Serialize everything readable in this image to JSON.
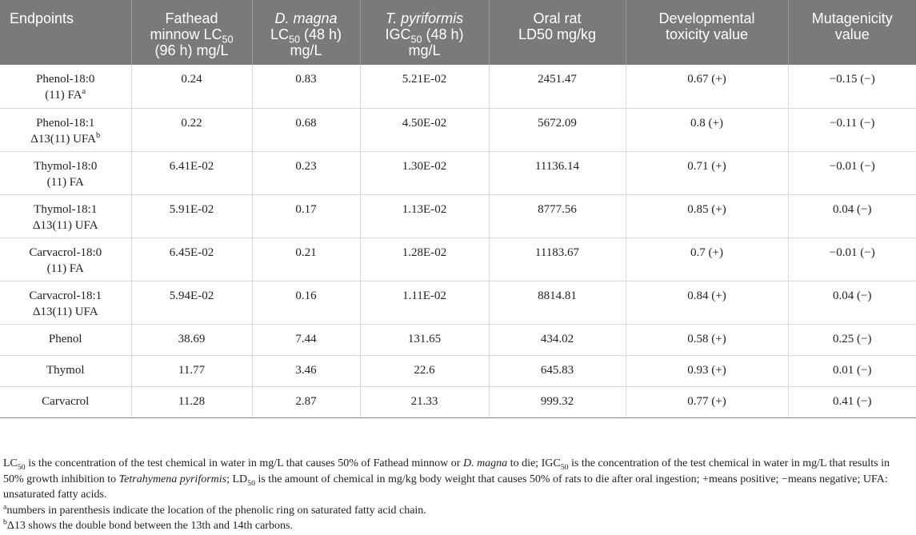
{
  "headers": [
    {
      "id": "endpoints",
      "line1": "Endpoints"
    },
    {
      "id": "fathead",
      "line1": "Fathead",
      "line2a": "minnow LC",
      "line2sub": "50",
      "line3": "(96 h) mg/L"
    },
    {
      "id": "dmagna",
      "line1_it": "D. magna",
      "line2a": "LC",
      "line2sub": "50",
      "line2b": " (48 h)",
      "line3": "mg/L"
    },
    {
      "id": "tpyri",
      "line1_it": "T. pyriformis",
      "line2a": "IGC",
      "line2sub": "50",
      "line2b": " (48 h)",
      "line3": "mg/L"
    },
    {
      "id": "oralrat",
      "line1": "Oral rat",
      "line2": "LD50 mg/kg"
    },
    {
      "id": "devtox",
      "line1": "Developmental",
      "line2": "toxicity value"
    },
    {
      "id": "mutagen",
      "line1": "Mutagenicity",
      "line2": "value"
    }
  ],
  "rows": [
    {
      "name1": "Phenol-18:0",
      "name2": "(11) FA",
      "sup": "a",
      "fathead": "0.24",
      "dmagna": "0.83",
      "tpyri": "5.21E-02",
      "oralrat": "2451.47",
      "devtox": "0.67 (+)",
      "mutagen": "−0.15 (−)"
    },
    {
      "name1": "Phenol-18:1",
      "name2": "Δ13(11) UFA",
      "sup": "b",
      "fathead": "0.22",
      "dmagna": "0.68",
      "tpyri": "4.50E-02",
      "oralrat": "5672.09",
      "devtox": "0.8 (+)",
      "mutagen": "−0.11 (−)"
    },
    {
      "name1": "Thymol-18:0",
      "name2": "(11) FA",
      "sup": "",
      "fathead": "6.41E-02",
      "dmagna": "0.23",
      "tpyri": "1.30E-02",
      "oralrat": "11136.14",
      "devtox": "0.71 (+)",
      "mutagen": "−0.01 (−)"
    },
    {
      "name1": "Thymol-18:1",
      "name2": "Δ13(11) UFA",
      "sup": "",
      "fathead": "5.91E-02",
      "dmagna": "0.17",
      "tpyri": "1.13E-02",
      "oralrat": "8777.56",
      "devtox": "0.85 (+)",
      "mutagen": "0.04 (−)"
    },
    {
      "name1": "Carvacrol-18:0",
      "name2": "(11) FA",
      "sup": "",
      "fathead": "6.45E-02",
      "dmagna": "0.21",
      "tpyri": "1.28E-02",
      "oralrat": "11183.67",
      "devtox": "0.7 (+)",
      "mutagen": "−0.01 (−)"
    },
    {
      "name1": "Carvacrol-18:1",
      "name2": "Δ13(11) UFA",
      "sup": "",
      "fathead": "5.94E-02",
      "dmagna": "0.16",
      "tpyri": "1.11E-02",
      "oralrat": "8814.81",
      "devtox": "0.84 (+)",
      "mutagen": "0.04 (−)"
    },
    {
      "name1": "Phenol",
      "name2": "",
      "sup": "",
      "fathead": "38.69",
      "dmagna": "7.44",
      "tpyri": "131.65",
      "oralrat": "434.02",
      "devtox": "0.58 (+)",
      "mutagen": "0.25 (−)"
    },
    {
      "name1": "Thymol",
      "name2": "",
      "sup": "",
      "fathead": "11.77",
      "dmagna": "3.46",
      "tpyri": "22.6",
      "oralrat": "645.83",
      "devtox": "0.93 (+)",
      "mutagen": "0.01 (−)"
    },
    {
      "name1": "Carvacrol",
      "name2": "",
      "sup": "",
      "fathead": "11.28",
      "dmagna": "2.87",
      "tpyri": "21.33",
      "oralrat": "999.32",
      "devtox": "0.77 (+)",
      "mutagen": "0.41 (−)"
    }
  ],
  "footnote_main": {
    "a1": "LC",
    "a1sub": "50",
    "a2": " is the concentration of the test chemical in water in mg/L that causes 50% of Fathead minnow or ",
    "a2it": "D. magna",
    "a3": " to die; IGC",
    "a3sub": "50",
    "a4": " is the concentration of the test chemical in water in mg/L that results in 50% growth inhibition to ",
    "a4it": "Tetrahymena pyriformis",
    "a5": "; LD",
    "a5sub": "50",
    "a6": " is the amount of chemical in mg/kg body weight that causes 50% of rats to die after oral ingestion; +means positive; −means negative; UFA: unsaturated fatty acids."
  },
  "footnote_a": {
    "mark": "a",
    "text": "numbers in parenthesis indicate the location of the phenolic ring on saturated fatty acid chain."
  },
  "footnote_b": {
    "mark": "b",
    "text": "Δ13 shows the double bond between the 13th and 14th carbons."
  }
}
